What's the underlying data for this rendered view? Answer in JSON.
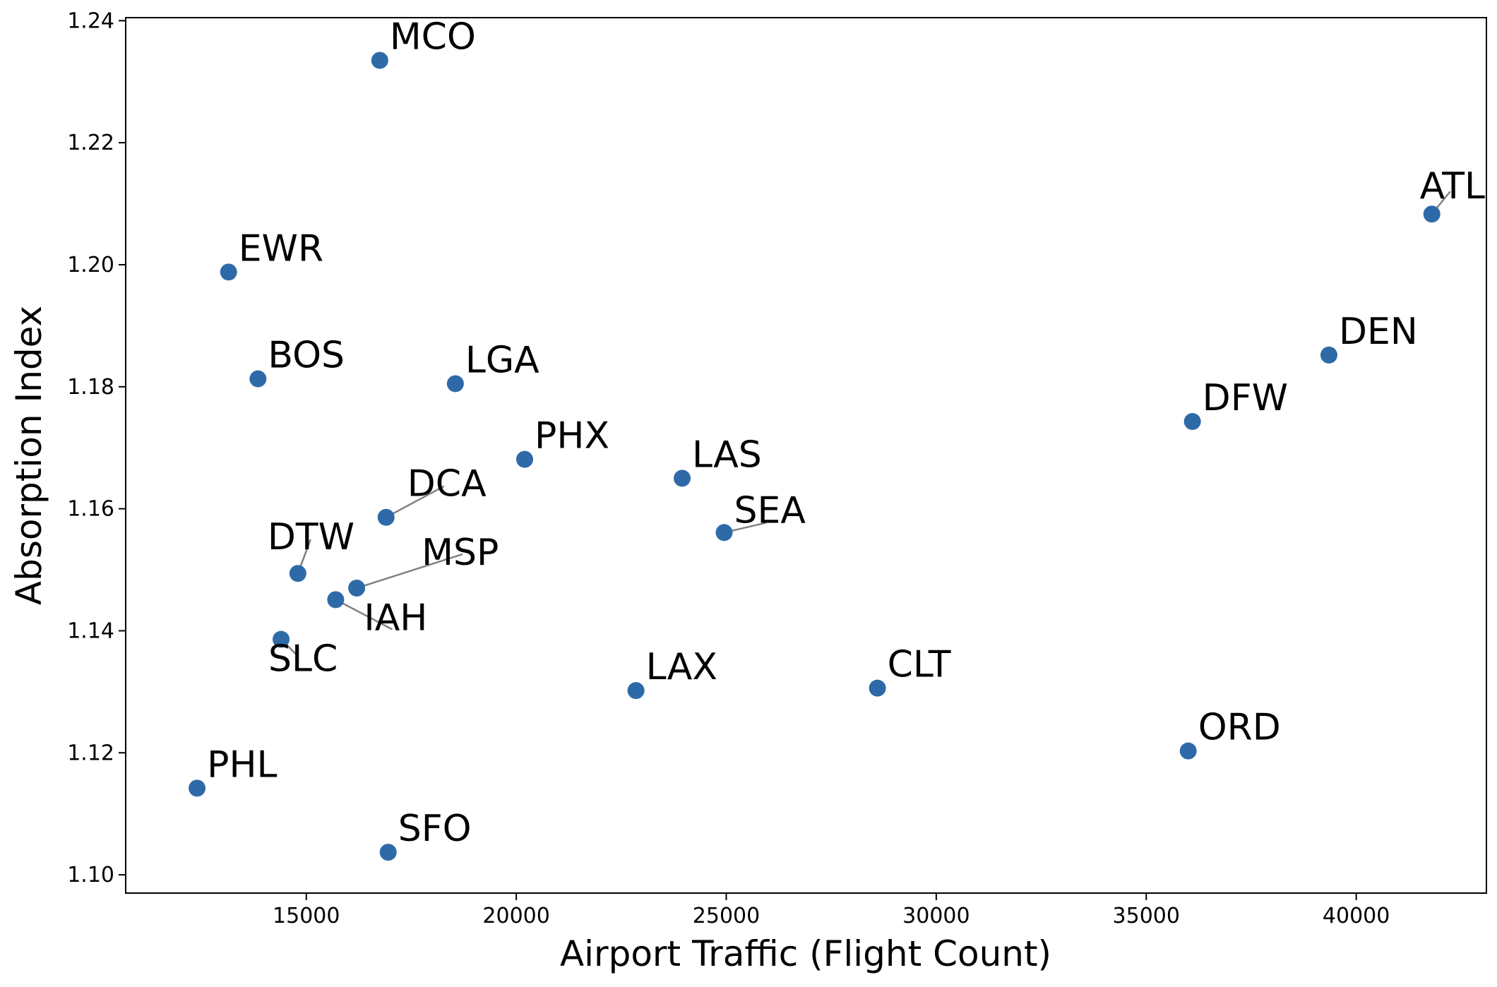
{
  "chart_data": {
    "type": "scatter",
    "title": "",
    "xlabel": "Airport Traffic (Flight Count)",
    "ylabel": "Absorption Index",
    "xlim": [
      10700,
      43100
    ],
    "ylim": [
      1.097,
      1.2405
    ],
    "xticks": [
      15000,
      20000,
      25000,
      30000,
      35000,
      40000
    ],
    "xtick_labels": [
      "15000",
      "20000",
      "25000",
      "30000",
      "35000",
      "40000"
    ],
    "yticks": [
      1.1,
      1.12,
      1.14,
      1.16,
      1.18,
      1.2,
      1.22,
      1.24
    ],
    "ytick_labels": [
      "1.10",
      "1.12",
      "1.14",
      "1.16",
      "1.18",
      "1.20",
      "1.22",
      "1.24"
    ],
    "grid": false,
    "color": "#2f6aa8",
    "points": [
      {
        "label": "MCO",
        "x": 16750,
        "y": 1.2335
      },
      {
        "label": "ATL",
        "x": 41800,
        "y": 1.2083
      },
      {
        "label": "EWR",
        "x": 13150,
        "y": 1.1988
      },
      {
        "label": "DEN",
        "x": 39350,
        "y": 1.1852
      },
      {
        "label": "BOS",
        "x": 13850,
        "y": 1.1813
      },
      {
        "label": "LGA",
        "x": 18550,
        "y": 1.1805
      },
      {
        "label": "DFW",
        "x": 36100,
        "y": 1.1743
      },
      {
        "label": "PHX",
        "x": 20200,
        "y": 1.1681
      },
      {
        "label": "LAS",
        "x": 23950,
        "y": 1.165
      },
      {
        "label": "DCA",
        "x": 16900,
        "y": 1.1586
      },
      {
        "label": "SEA",
        "x": 24950,
        "y": 1.1561
      },
      {
        "label": "DTW",
        "x": 14800,
        "y": 1.1494
      },
      {
        "label": "MSP",
        "x": 16200,
        "y": 1.147
      },
      {
        "label": "IAH",
        "x": 15700,
        "y": 1.1451
      },
      {
        "label": "SLC",
        "x": 14400,
        "y": 1.1386
      },
      {
        "label": "LAX",
        "x": 22850,
        "y": 1.1302
      },
      {
        "label": "CLT",
        "x": 28600,
        "y": 1.1306
      },
      {
        "label": "ORD",
        "x": 36000,
        "y": 1.1203
      },
      {
        "label": "PHL",
        "x": 12400,
        "y": 1.1142
      },
      {
        "label": "SFO",
        "x": 16950,
        "y": 1.1037
      }
    ]
  }
}
